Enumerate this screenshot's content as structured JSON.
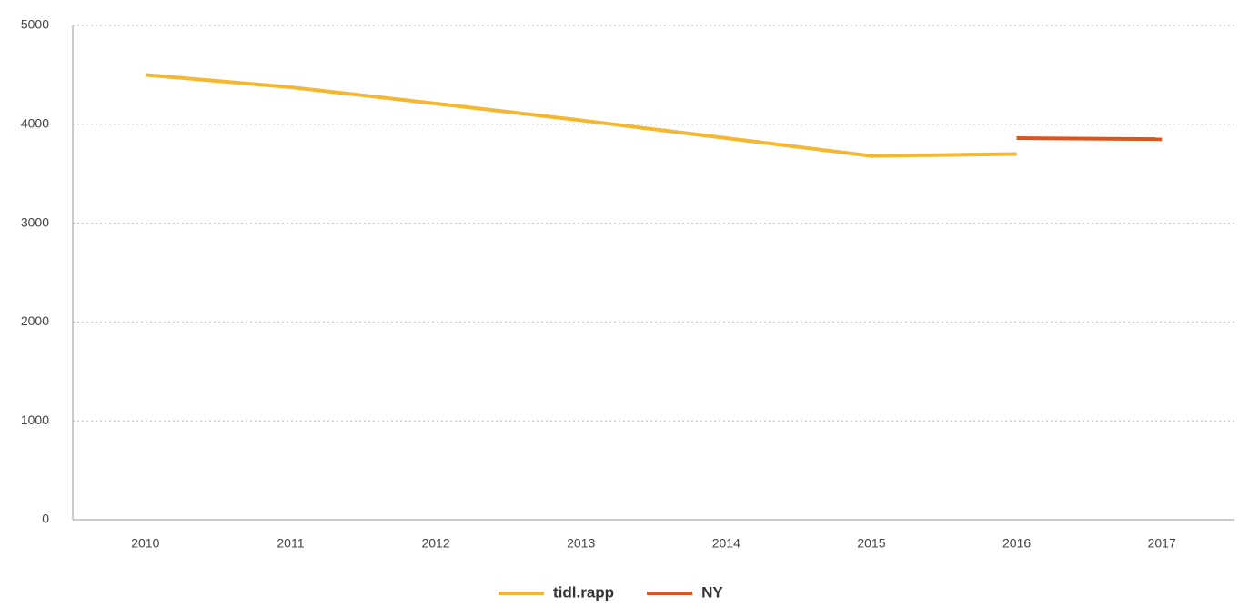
{
  "chart_data": {
    "type": "line",
    "categories": [
      "2010",
      "2011",
      "2012",
      "2013",
      "2014",
      "2015",
      "2016",
      "2017"
    ],
    "series": [
      {
        "name": "tidl.rapp",
        "color": "#f4b731",
        "values": [
          4500,
          4375,
          4210,
          4040,
          3860,
          3680,
          3700,
          null
        ]
      },
      {
        "name": "NY",
        "color": "#d9541e",
        "values": [
          null,
          null,
          null,
          null,
          null,
          null,
          3860,
          3850
        ]
      }
    ],
    "ylim": [
      0,
      5000
    ],
    "yticks": [
      0,
      1000,
      2000,
      3000,
      4000,
      5000
    ],
    "grid": true,
    "legend": "bottom"
  }
}
